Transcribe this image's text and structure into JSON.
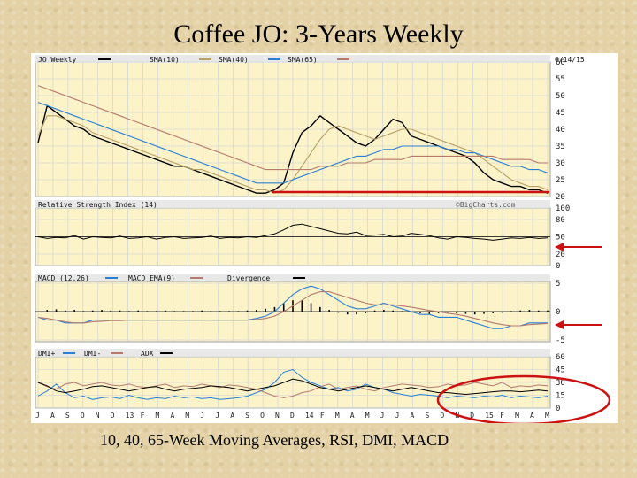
{
  "slide": {
    "title": "Coffee JO: 3-Years Weekly",
    "caption": "10, 40, 65-Week Moving Averages, RSI, DMI, MACD"
  },
  "colors": {
    "price": "#000000",
    "sma10": "#b8a064",
    "sma40": "#2a7fd4",
    "sma65": "#b47a6e",
    "rsi": "#000000",
    "macd": "#2a7fd4",
    "macd_ema": "#b47a6e",
    "divergence": "#000000",
    "dmi_plus": "#2a7fd4",
    "dmi_minus": "#b47a6e",
    "adx": "#000000",
    "annotation": "#cc1111",
    "chart_bg": "#fdf3c9"
  },
  "chart_data": [
    {
      "type": "line",
      "panel": "price",
      "title": "JO Weekly",
      "date": "6/14/15",
      "legend": [
        "JO Weekly",
        "SMA(10)",
        "SMA(40)",
        "SMA(65)"
      ],
      "ylim": [
        20,
        60
      ],
      "yticks": [
        60,
        55,
        50,
        45,
        40,
        35,
        30,
        25,
        20
      ],
      "series": [
        {
          "name": "JO Weekly",
          "values": [
            36,
            47,
            45,
            43,
            41,
            40,
            38,
            37,
            36,
            35,
            34,
            33,
            32,
            31,
            30,
            29,
            29,
            28,
            27,
            26,
            25,
            24,
            23,
            22,
            21,
            21,
            22,
            24,
            33,
            39,
            41,
            44,
            42,
            40,
            38,
            36,
            35,
            37,
            40,
            43,
            42,
            38,
            37,
            36,
            35,
            34,
            33,
            32,
            30,
            27,
            25,
            24,
            23,
            23,
            22,
            22,
            21
          ]
        },
        {
          "name": "SMA(10)",
          "values": [
            38,
            44,
            44,
            43,
            42,
            41,
            39,
            38,
            37,
            36,
            35,
            34,
            33,
            32,
            31,
            30,
            29,
            28,
            28,
            27,
            26,
            25,
            24,
            23,
            22,
            22,
            21,
            22,
            25,
            29,
            33,
            37,
            40,
            41,
            40,
            39,
            38,
            37,
            38,
            39,
            40,
            40,
            39,
            38,
            37,
            36,
            35,
            34,
            33,
            31,
            29,
            27,
            25,
            24,
            23,
            23,
            22
          ]
        },
        {
          "name": "SMA(40)",
          "values": [
            48,
            47,
            46,
            45,
            44,
            43,
            42,
            41,
            40,
            39,
            38,
            37,
            36,
            35,
            34,
            33,
            32,
            31,
            30,
            29,
            28,
            27,
            26,
            25,
            24,
            24,
            24,
            24,
            25,
            26,
            27,
            28,
            29,
            30,
            31,
            32,
            32,
            33,
            34,
            34,
            35,
            35,
            35,
            35,
            35,
            34,
            34,
            33,
            33,
            32,
            31,
            30,
            29,
            29,
            28,
            28,
            27
          ]
        },
        {
          "name": "SMA(65)",
          "values": [
            53,
            52,
            51,
            50,
            49,
            48,
            47,
            46,
            45,
            44,
            43,
            42,
            41,
            40,
            39,
            38,
            37,
            36,
            35,
            34,
            33,
            32,
            31,
            30,
            29,
            28,
            28,
            28,
            28,
            28,
            28,
            29,
            29,
            29,
            30,
            30,
            30,
            31,
            31,
            31,
            31,
            32,
            32,
            32,
            32,
            32,
            32,
            32,
            32,
            32,
            32,
            31,
            31,
            31,
            31,
            30,
            30
          ]
        }
      ]
    },
    {
      "type": "line",
      "panel": "rsi",
      "title": "Relative Strength Index (14)",
      "watermark": "©BigCharts.com",
      "ylim": [
        0,
        100
      ],
      "yticks": [
        100,
        80,
        50,
        20,
        0
      ],
      "series": [
        {
          "name": "Relative Strength Index (14)",
          "values": [
            50,
            47,
            49,
            48,
            52,
            46,
            50,
            49,
            48,
            51,
            47,
            48,
            50,
            46,
            49,
            50,
            47,
            48,
            49,
            51,
            47,
            49,
            48,
            50,
            49,
            52,
            55,
            62,
            70,
            72,
            68,
            64,
            60,
            56,
            55,
            58,
            52,
            53,
            54,
            50,
            51,
            56,
            54,
            52,
            48,
            46,
            50,
            49,
            47,
            46,
            44,
            46,
            48,
            47,
            49,
            47,
            48
          ]
        }
      ]
    },
    {
      "type": "bar",
      "panel": "macd",
      "title": "MACD (12,26)",
      "legend": [
        "MACD (12,26)",
        "MACD EMA(9)",
        "Divergence"
      ],
      "yticks": [
        5,
        0,
        -5
      ],
      "series": [
        {
          "name": "MACD (12,26)",
          "values": [
            -1,
            -1.5,
            -1.5,
            -2,
            -2,
            -2,
            -1.5,
            -1.5,
            -1.5,
            -1.5,
            -1.5,
            -1.5,
            -1.5,
            -1.5,
            -1.5,
            -1.5,
            -1.5,
            -1.5,
            -1.5,
            -1.5,
            -1.5,
            -1.5,
            -1.5,
            -1.5,
            -1.2,
            -0.8,
            0,
            1.5,
            3,
            4,
            4.5,
            4,
            3,
            2,
            1,
            0.5,
            0.5,
            1,
            1.5,
            1,
            0.5,
            0,
            -0.5,
            -0.5,
            -1,
            -1,
            -1,
            -1.5,
            -2,
            -2.5,
            -3,
            -3,
            -2.5,
            -2.5,
            -2,
            -2,
            -2
          ]
        },
        {
          "name": "MACD EMA(9)",
          "values": [
            -1,
            -1.2,
            -1.5,
            -1.8,
            -2,
            -2,
            -1.8,
            -1.7,
            -1.6,
            -1.6,
            -1.5,
            -1.5,
            -1.5,
            -1.5,
            -1.5,
            -1.5,
            -1.5,
            -1.5,
            -1.5,
            -1.5,
            -1.5,
            -1.5,
            -1.5,
            -1.5,
            -1.4,
            -1.2,
            -0.8,
            0,
            1,
            2,
            3,
            3.5,
            3.5,
            3,
            2.5,
            2,
            1.5,
            1.2,
            1.2,
            1.2,
            1,
            0.8,
            0.5,
            0.2,
            0,
            -0.3,
            -0.5,
            -0.8,
            -1.2,
            -1.6,
            -2,
            -2.3,
            -2.5,
            -2.5,
            -2.3,
            -2.2,
            -2.1
          ]
        },
        {
          "name": "Divergence",
          "values": [
            0,
            0.3,
            0.4,
            0.2,
            0.3,
            0.1,
            0.2,
            0.3,
            0.2,
            0.2,
            0.1,
            0.2,
            0.1,
            0.1,
            0.2,
            0.1,
            0.1,
            0.1,
            0.2,
            0.1,
            0.1,
            0.1,
            0.1,
            0.2,
            0.3,
            0.5,
            0.8,
            1.5,
            2,
            2,
            1.5,
            0.8,
            0.3,
            -0.2,
            -0.5,
            -0.5,
            -0.3,
            0.2,
            0.3,
            0.2,
            0.1,
            -0.2,
            -0.3,
            -0.4,
            -0.3,
            -0.2,
            -0.3,
            -0.4,
            -0.5,
            -0.4,
            -0.3,
            -0.2,
            0.1,
            0.2,
            0.3,
            0.2,
            0.2
          ]
        }
      ]
    },
    {
      "type": "line",
      "panel": "dmi",
      "title": "DMI+",
      "legend": [
        "DMI+",
        "DMI-",
        "ADX"
      ],
      "ylim": [
        0,
        60
      ],
      "yticks": [
        60,
        45,
        30,
        15,
        0
      ],
      "series": [
        {
          "name": "DMI+",
          "values": [
            14,
            20,
            28,
            18,
            12,
            14,
            10,
            12,
            13,
            11,
            15,
            12,
            10,
            12,
            11,
            14,
            12,
            13,
            11,
            12,
            10,
            11,
            12,
            14,
            18,
            22,
            30,
            42,
            45,
            36,
            30,
            26,
            22,
            24,
            20,
            22,
            28,
            24,
            22,
            18,
            16,
            14,
            16,
            15,
            14,
            12,
            14,
            13,
            12,
            14,
            13,
            15,
            12,
            14,
            13,
            12,
            14
          ]
        },
        {
          "name": "DMI-",
          "values": [
            30,
            25,
            22,
            28,
            30,
            26,
            28,
            30,
            27,
            26,
            28,
            25,
            24,
            26,
            28,
            24,
            26,
            25,
            28,
            26,
            24,
            27,
            26,
            24,
            22,
            18,
            14,
            12,
            14,
            18,
            20,
            25,
            28,
            22,
            24,
            26,
            22,
            20,
            24,
            26,
            28,
            27,
            26,
            24,
            25,
            28,
            26,
            27,
            30,
            28,
            26,
            30,
            24,
            26,
            25,
            27,
            26
          ]
        },
        {
          "name": "ADX",
          "values": [
            30,
            26,
            20,
            18,
            20,
            22,
            25,
            26,
            24,
            22,
            20,
            22,
            24,
            25,
            22,
            20,
            22,
            23,
            24,
            26,
            25,
            24,
            22,
            20,
            22,
            24,
            26,
            30,
            34,
            32,
            28,
            24,
            22,
            20,
            22,
            24,
            26,
            24,
            22,
            20,
            22,
            24,
            22,
            20,
            18,
            18,
            17,
            16,
            17,
            18,
            19,
            20,
            20,
            19,
            20,
            21,
            20
          ]
        }
      ]
    }
  ],
  "x_axis": {
    "labels": [
      "J",
      "A",
      "S",
      "O",
      "N",
      "D",
      "13",
      "F",
      "M",
      "A",
      "M",
      "J",
      "J",
      "A",
      "S",
      "O",
      "N",
      "D",
      "14",
      "F",
      "M",
      "A",
      "M",
      "J",
      "J",
      "A",
      "S",
      "O",
      "N",
      "D",
      "15",
      "F",
      "M",
      "A",
      "M"
    ]
  }
}
